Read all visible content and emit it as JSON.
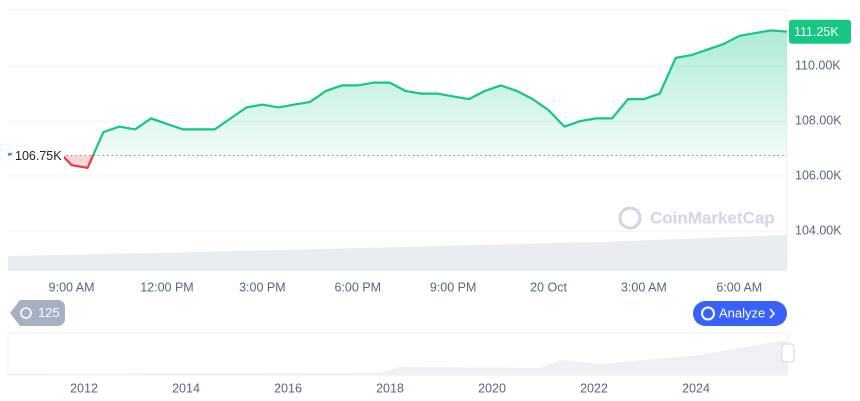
{
  "chart_data": {
    "type": "line",
    "categories": [
      null,
      null,
      null,
      null,
      "9:00 AM",
      null,
      null,
      null,
      null,
      null,
      "12:00 PM",
      null,
      null,
      null,
      null,
      null,
      "3:00 PM",
      null,
      null,
      null,
      null,
      null,
      "6:00 PM",
      null,
      null,
      null,
      null,
      null,
      "9:00 PM",
      null,
      null,
      null,
      null,
      null,
      "20 Oct",
      null,
      null,
      null,
      null,
      null,
      "3:00 AM",
      null,
      null,
      null,
      null,
      null,
      "6:00 AM",
      null,
      null,
      null
    ],
    "series": [
      {
        "color": "#16c784",
        "values": [
          106800,
          106800,
          106800,
          107000,
          106400,
          106300,
          107600,
          107800,
          107700,
          108100,
          107900,
          107700,
          107700,
          107700,
          108100,
          108500,
          108600,
          108500,
          108600,
          108700,
          109100,
          109300,
          109300,
          109400,
          109400,
          109100,
          109000,
          109000,
          108900,
          108800,
          109100,
          109300,
          109100,
          108800,
          108400,
          107800,
          108000,
          108100,
          108100,
          108800,
          108800,
          109000,
          110300,
          110400,
          110600,
          110800,
          111100,
          111200,
          111300,
          111250
        ]
      }
    ],
    "below_color": "#ea3943",
    "baseline": {
      "value": 106750,
      "label": "106.75K"
    },
    "last_price": {
      "value": 111250,
      "label": "111.25K"
    },
    "ylim": [
      102550,
      112040
    ],
    "yticks": [
      {
        "value": 104000,
        "label": "104.00K"
      },
      {
        "value": 106000,
        "label": "106.00K"
      },
      {
        "value": 108000,
        "label": "108.00K"
      },
      {
        "value": 110000,
        "label": "110.00K"
      }
    ],
    "grid": true,
    "watermark": "CoinMarketCap",
    "history_badge": 125,
    "analyze_button": "Analyze",
    "navigator_years": [
      2012,
      2014,
      2016,
      2018,
      2020,
      2022,
      2024
    ]
  }
}
